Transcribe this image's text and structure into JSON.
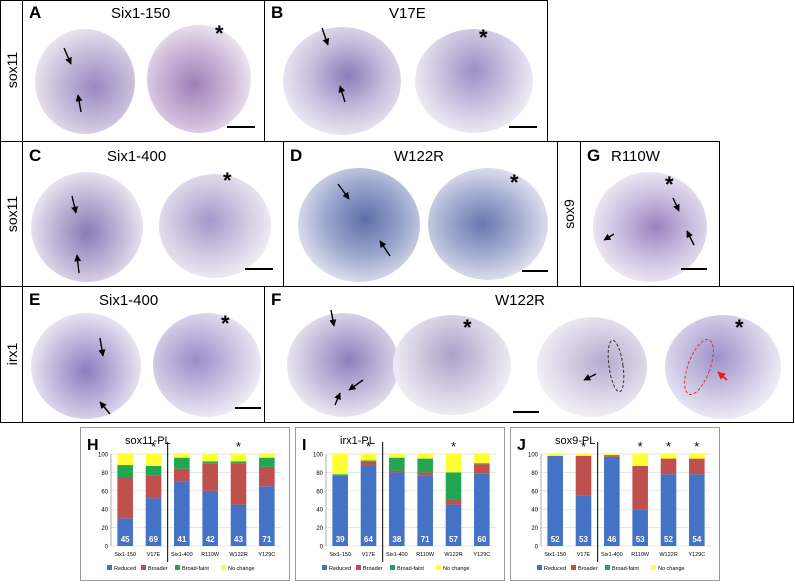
{
  "panels": {
    "A": {
      "letter": "A",
      "title": "Six1-150"
    },
    "B": {
      "letter": "B",
      "title": "V17E"
    },
    "C": {
      "letter": "C",
      "title": "Six1-400"
    },
    "D": {
      "letter": "D",
      "title": "W122R"
    },
    "G": {
      "letter": "G",
      "title": "R110W"
    },
    "E": {
      "letter": "E",
      "title": "Six1-400"
    },
    "F": {
      "letter": "F",
      "title": "W122R"
    }
  },
  "row_labels": {
    "row1": "sox11",
    "row2": "sox11",
    "row3": "irx1",
    "G": "sox9"
  },
  "star": "*",
  "legend": {
    "items": [
      {
        "label": "Reduced",
        "color": "#4472c4"
      },
      {
        "label": "Broader",
        "color": "#c0504d"
      },
      {
        "label": "Broad-faint",
        "color": "#22a654"
      },
      {
        "label": "No change",
        "color": "#ffff33"
      }
    ]
  },
  "chart_data": [
    {
      "type": "bar",
      "letter": "H",
      "title": "sox11-PL",
      "categories": [
        "Six1-150",
        "V17E",
        "Six1-400",
        "R110W",
        "W122R",
        "Y129C"
      ],
      "ylim": [
        0,
        100
      ],
      "yticks": [
        "0",
        "20",
        "40",
        "60",
        "80",
        "100"
      ],
      "counts": [
        "45",
        "69",
        "41",
        "42",
        "43",
        "71"
      ],
      "stars": [
        "",
        "*",
        "",
        "",
        "*",
        ""
      ],
      "series": [
        {
          "name": "Reduced",
          "values": [
            30,
            52,
            70,
            60,
            45,
            65
          ]
        },
        {
          "name": "Broader",
          "values": [
            45,
            25,
            14,
            30,
            45,
            21
          ]
        },
        {
          "name": "Broad-faint",
          "values": [
            13,
            10,
            12,
            2,
            2,
            10
          ]
        },
        {
          "name": "No change",
          "values": [
            12,
            13,
            4,
            8,
            8,
            4
          ]
        }
      ]
    },
    {
      "type": "bar",
      "letter": "I",
      "title": "irx1-PL",
      "categories": [
        "Six1-150",
        "V17E",
        "Six1-400",
        "R110W",
        "W122R",
        "Y129C"
      ],
      "ylim": [
        0,
        100
      ],
      "yticks": [
        "0",
        "20",
        "40",
        "60",
        "80",
        "100"
      ],
      "counts": [
        "39",
        "64",
        "38",
        "71",
        "57",
        "60"
      ],
      "stars": [
        "",
        "*",
        "",
        "",
        "*",
        ""
      ],
      "series": [
        {
          "name": "Reduced",
          "values": [
            77,
            87,
            80,
            77,
            45,
            79
          ]
        },
        {
          "name": "Broader",
          "values": [
            0,
            5,
            2,
            3,
            6,
            10
          ]
        },
        {
          "name": "Broad-faint",
          "values": [
            1,
            1,
            14,
            15,
            29,
            1
          ]
        },
        {
          "name": "No change",
          "values": [
            22,
            7,
            4,
            5,
            20,
            10
          ]
        }
      ]
    },
    {
      "type": "bar",
      "letter": "J",
      "title": "sox9-PL",
      "categories": [
        "Six1-150",
        "V17E",
        "Six1-400",
        "R110W",
        "W122R",
        "Y129C"
      ],
      "ylim": [
        0,
        100
      ],
      "yticks": [
        "0",
        "20",
        "40",
        "60",
        "80",
        "100"
      ],
      "counts": [
        "52",
        "53",
        "46",
        "53",
        "52",
        "54"
      ],
      "stars": [
        "",
        "*",
        "",
        "*",
        "*",
        "*"
      ],
      "series": [
        {
          "name": "Reduced",
          "values": [
            98,
            55,
            97,
            40,
            78,
            78
          ]
        },
        {
          "name": "Broader",
          "values": [
            0,
            43,
            1,
            47,
            17,
            17
          ]
        },
        {
          "name": "Broad-faint",
          "values": [
            0,
            0,
            1,
            0,
            0,
            0
          ]
        },
        {
          "name": "No change",
          "values": [
            2,
            2,
            1,
            13,
            5,
            5
          ]
        }
      ]
    }
  ]
}
